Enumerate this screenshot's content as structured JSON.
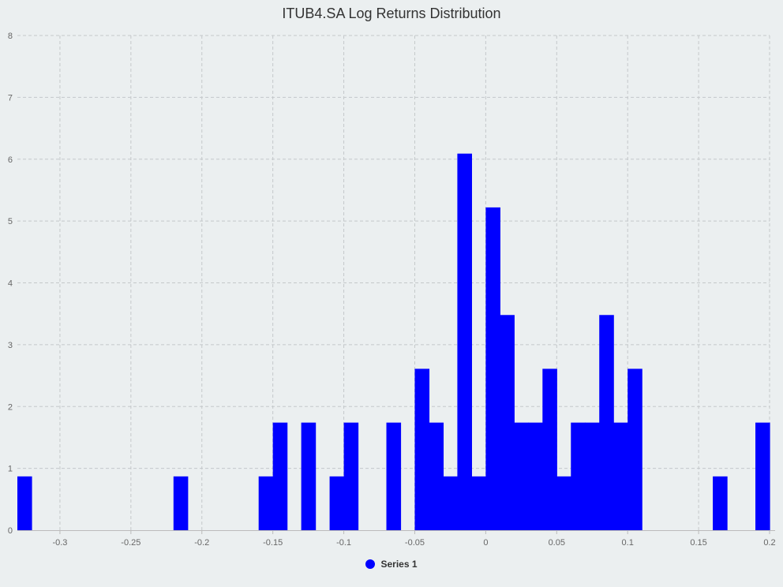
{
  "chart_data": {
    "type": "bar",
    "title": "ITUB4.SA Log Returns Distribution",
    "xlabel": "",
    "ylabel": "",
    "xlim": [
      -0.33,
      0.2
    ],
    "ylim": [
      0,
      8
    ],
    "x_ticks": [
      "-0.3",
      "-0.25",
      "-0.2",
      "-0.15",
      "-0.1",
      "-0.05",
      "0",
      "0.05",
      "0.1",
      "0.15",
      "0.2"
    ],
    "x_tick_values": [
      -0.3,
      -0.25,
      -0.2,
      -0.15,
      -0.1,
      -0.05,
      0,
      0.05,
      0.1,
      0.15,
      0.2
    ],
    "y_ticks": [
      0,
      1,
      2,
      3,
      4,
      5,
      6,
      7,
      8
    ],
    "grid": true,
    "legend_position": "bottom",
    "bin_width": 0.01,
    "series": [
      {
        "name": "Series 1",
        "color": "#0000ff",
        "bins": [
          {
            "x0": -0.33,
            "x1": -0.32,
            "y": 0.87
          },
          {
            "x0": -0.22,
            "x1": -0.21,
            "y": 0.87
          },
          {
            "x0": -0.16,
            "x1": -0.15,
            "y": 0.87
          },
          {
            "x0": -0.15,
            "x1": -0.14,
            "y": 1.74
          },
          {
            "x0": -0.13,
            "x1": -0.12,
            "y": 1.74
          },
          {
            "x0": -0.11,
            "x1": -0.1,
            "y": 0.87
          },
          {
            "x0": -0.1,
            "x1": -0.09,
            "y": 1.74
          },
          {
            "x0": -0.07,
            "x1": -0.06,
            "y": 1.74
          },
          {
            "x0": -0.05,
            "x1": -0.04,
            "y": 2.61
          },
          {
            "x0": -0.04,
            "x1": -0.03,
            "y": 1.74
          },
          {
            "x0": -0.03,
            "x1": -0.02,
            "y": 0.87
          },
          {
            "x0": -0.02,
            "x1": -0.01,
            "y": 6.09
          },
          {
            "x0": -0.01,
            "x1": 0.0,
            "y": 0.87
          },
          {
            "x0": 0.0,
            "x1": 0.01,
            "y": 5.22
          },
          {
            "x0": 0.01,
            "x1": 0.02,
            "y": 3.48
          },
          {
            "x0": 0.02,
            "x1": 0.03,
            "y": 1.74
          },
          {
            "x0": 0.03,
            "x1": 0.04,
            "y": 1.74
          },
          {
            "x0": 0.04,
            "x1": 0.05,
            "y": 2.61
          },
          {
            "x0": 0.05,
            "x1": 0.06,
            "y": 0.87
          },
          {
            "x0": 0.06,
            "x1": 0.07,
            "y": 1.74
          },
          {
            "x0": 0.07,
            "x1": 0.08,
            "y": 1.74
          },
          {
            "x0": 0.08,
            "x1": 0.09,
            "y": 3.48
          },
          {
            "x0": 0.09,
            "x1": 0.1,
            "y": 1.74
          },
          {
            "x0": 0.1,
            "x1": 0.11,
            "y": 2.61
          },
          {
            "x0": 0.16,
            "x1": 0.17,
            "y": 0.87
          },
          {
            "x0": 0.19,
            "x1": 0.2,
            "y": 1.74
          }
        ]
      }
    ]
  }
}
